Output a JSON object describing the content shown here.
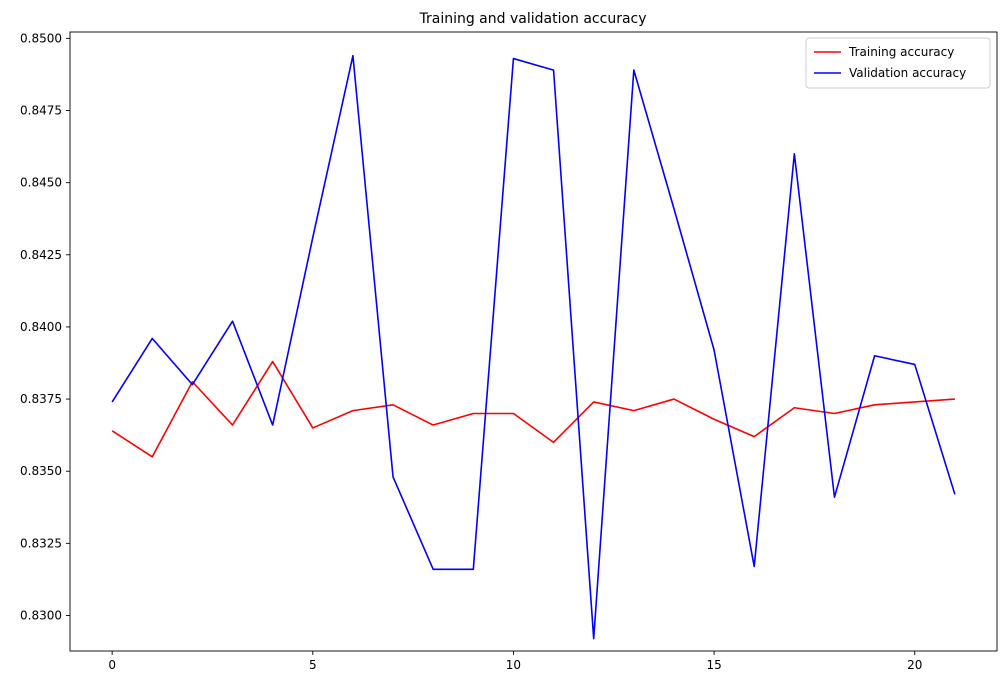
{
  "chart_data": {
    "type": "line",
    "title": "Training and validation accuracy",
    "xlabel": "",
    "ylabel": "",
    "xlim": [
      -1.05,
      22.05
    ],
    "ylim": [
      0.82877,
      0.85022
    ],
    "x_ticks": [
      0,
      5,
      10,
      15,
      20
    ],
    "x_tick_labels": [
      "0",
      "5",
      "10",
      "15",
      "20"
    ],
    "y_ticks": [
      0.83,
      0.8325,
      0.835,
      0.8375,
      0.84,
      0.8425,
      0.845,
      0.8475,
      0.85
    ],
    "y_tick_labels": [
      "0.8300",
      "0.8325",
      "0.8350",
      "0.8375",
      "0.8400",
      "0.8425",
      "0.8450",
      "0.8475",
      "0.8500"
    ],
    "grid": false,
    "legend_position": "upper-right",
    "x": [
      0,
      1,
      2,
      3,
      4,
      5,
      6,
      7,
      8,
      9,
      10,
      11,
      12,
      13,
      14,
      15,
      16,
      17,
      18,
      19,
      20,
      21
    ],
    "series": [
      {
        "name": "Training accuracy",
        "color": "#ff0000",
        "values": [
          0.8364,
          0.8355,
          0.8381,
          0.8366,
          0.8388,
          0.8365,
          0.8371,
          0.8373,
          0.8366,
          0.837,
          0.837,
          0.836,
          0.8374,
          0.8371,
          0.8375,
          0.8368,
          0.8362,
          0.8372,
          0.837,
          0.8373,
          0.8374,
          0.8375
        ]
      },
      {
        "name": "Validation accuracy",
        "color": "#0000ff",
        "values": [
          0.8374,
          0.8396,
          0.838,
          0.8402,
          0.8366,
          0.8431,
          0.8494,
          0.8348,
          0.8316,
          0.8316,
          0.8493,
          0.8489,
          0.8292,
          0.8489,
          0.8441,
          0.8392,
          0.8317,
          0.846,
          0.8341,
          0.839,
          0.8387,
          0.8342
        ]
      }
    ]
  }
}
